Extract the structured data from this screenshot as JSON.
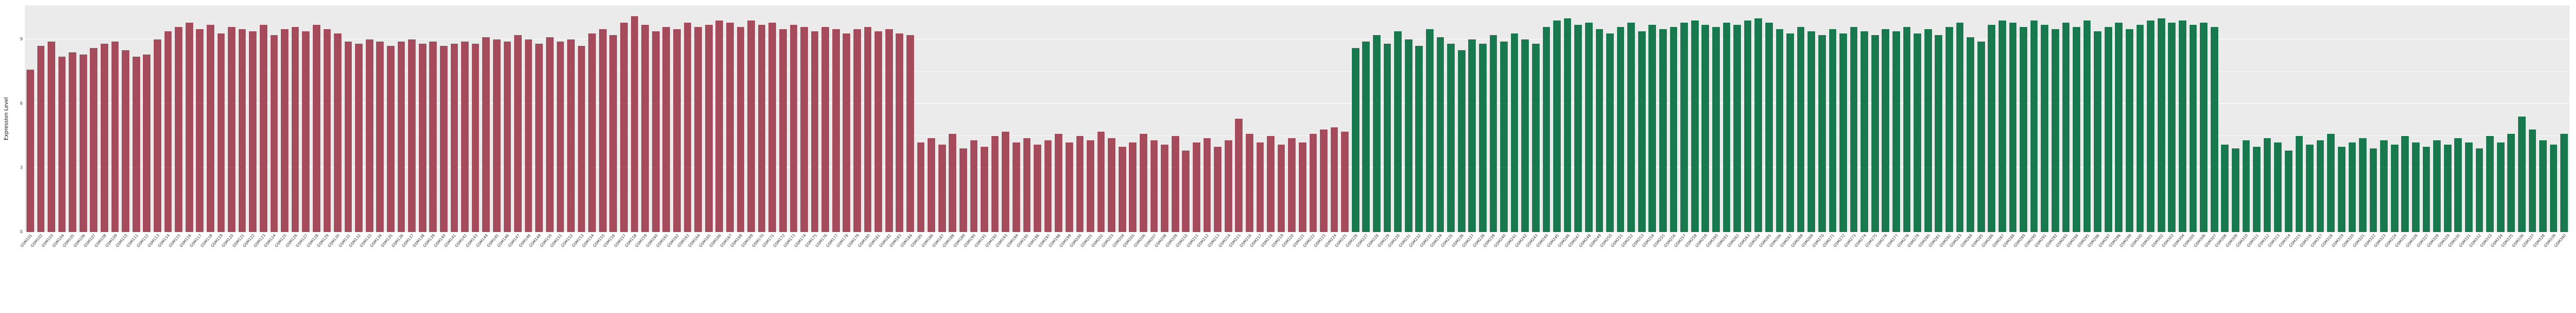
{
  "chart_data": {
    "type": "bar",
    "title": "",
    "xlabel": "",
    "ylabel": "Expression Level",
    "ylim": [
      0,
      10.6
    ],
    "yticks": [
      0,
      3,
      6,
      9
    ],
    "minor_yticks": [
      1.5,
      4.5,
      7.5
    ],
    "grid": "on",
    "legend": "none",
    "panel_background": "#ebebeb",
    "grid_color": "#ffffff",
    "groups": [
      {
        "name": "red-group",
        "color": "#a54b5b",
        "start": 0,
        "count": 125
      },
      {
        "name": "green-group",
        "color": "#18794e",
        "start": 125,
        "count": 115
      }
    ],
    "categories": [
      "GSM101",
      "GSM102",
      "GSM103",
      "GSM104",
      "GSM105",
      "GSM106",
      "GSM107",
      "GSM108",
      "GSM109",
      "GSM110",
      "GSM111",
      "GSM112",
      "GSM113",
      "GSM114",
      "GSM115",
      "GSM116",
      "GSM117",
      "GSM118",
      "GSM119",
      "GSM120",
      "GSM121",
      "GSM122",
      "GSM123",
      "GSM124",
      "GSM125",
      "GSM126",
      "GSM127",
      "GSM128",
      "GSM129",
      "GSM130",
      "GSM131",
      "GSM132",
      "GSM133",
      "GSM134",
      "GSM135",
      "GSM136",
      "GSM137",
      "GSM138",
      "GSM139",
      "GSM140",
      "GSM141",
      "GSM142",
      "GSM143",
      "GSM144",
      "GSM145",
      "GSM146",
      "GSM147",
      "GSM148",
      "GSM149",
      "GSM150",
      "GSM151",
      "GSM152",
      "GSM153",
      "GSM154",
      "GSM155",
      "GSM156",
      "GSM157",
      "GSM158",
      "GSM159",
      "GSM160",
      "GSM161",
      "GSM162",
      "GSM163",
      "GSM164",
      "GSM165",
      "GSM166",
      "GSM167",
      "GSM168",
      "GSM169",
      "GSM170",
      "GSM171",
      "GSM172",
      "GSM173",
      "GSM174",
      "GSM175",
      "GSM176",
      "GSM177",
      "GSM178",
      "GSM179",
      "GSM180",
      "GSM181",
      "GSM182",
      "GSM183",
      "GSM184",
      "GSM185",
      "GSM186",
      "GSM187",
      "GSM188",
      "GSM189",
      "GSM190",
      "GSM191",
      "GSM192",
      "GSM193",
      "GSM194",
      "GSM195",
      "GSM196",
      "GSM197",
      "GSM198",
      "GSM199",
      "GSM200",
      "GSM201",
      "GSM202",
      "GSM203",
      "GSM204",
      "GSM205",
      "GSM206",
      "GSM207",
      "GSM208",
      "GSM209",
      "GSM210",
      "GSM211",
      "GSM212",
      "GSM213",
      "GSM214",
      "GSM215",
      "GSM216",
      "GSM217",
      "GSM218",
      "GSM219",
      "GSM220",
      "GSM221",
      "GSM222",
      "GSM223",
      "GSM224",
      "GSM225",
      "GSM226",
      "GSM227",
      "GSM228",
      "GSM229",
      "GSM230",
      "GSM231",
      "GSM232",
      "GSM233",
      "GSM234",
      "GSM235",
      "GSM236",
      "GSM237",
      "GSM238",
      "GSM239",
      "GSM240",
      "GSM241",
      "GSM242",
      "GSM243",
      "GSM244",
      "GSM245",
      "GSM246",
      "GSM247",
      "GSM248",
      "GSM249",
      "GSM250",
      "GSM251",
      "GSM252",
      "GSM253",
      "GSM254",
      "GSM255",
      "GSM256",
      "GSM257",
      "GSM258",
      "GSM259",
      "GSM260",
      "GSM261",
      "GSM262",
      "GSM263",
      "GSM264",
      "GSM265",
      "GSM266",
      "GSM267",
      "GSM268",
      "GSM269",
      "GSM270",
      "GSM271",
      "GSM272",
      "GSM273",
      "GSM274",
      "GSM275",
      "GSM276",
      "GSM277",
      "GSM278",
      "GSM279",
      "GSM280",
      "GSM281",
      "GSM282",
      "GSM283",
      "GSM284",
      "GSM285",
      "GSM286",
      "GSM287",
      "GSM288",
      "GSM289",
      "GSM290",
      "GSM291",
      "GSM292",
      "GSM293",
      "GSM294",
      "GSM295",
      "GSM296",
      "GSM297",
      "GSM298",
      "GSM299",
      "GSM300",
      "GSM301",
      "GSM302",
      "GSM303",
      "GSM304",
      "GSM305",
      "GSM306",
      "GSM307",
      "GSM308",
      "GSM309",
      "GSM310",
      "GSM311",
      "GSM312",
      "GSM313",
      "GSM314",
      "GSM315",
      "GSM316",
      "GSM317",
      "GSM318",
      "GSM319",
      "GSM320",
      "GSM321",
      "GSM322",
      "GSM323",
      "GSM324",
      "GSM325",
      "GSM326",
      "GSM327",
      "GSM328",
      "GSM329",
      "GSM330",
      "GSM331",
      "GSM332",
      "GSM333",
      "GSM334",
      "GSM335",
      "GSM336",
      "GSM337",
      "GSM338",
      "GSM339",
      "GSM340"
    ],
    "values": [
      7.6,
      8.7,
      8.9,
      8.2,
      8.4,
      8.3,
      8.6,
      8.8,
      8.9,
      8.5,
      8.2,
      8.3,
      9.0,
      9.4,
      9.6,
      9.8,
      9.5,
      9.7,
      9.3,
      9.6,
      9.5,
      9.4,
      9.7,
      9.2,
      9.5,
      9.6,
      9.4,
      9.7,
      9.5,
      9.3,
      8.9,
      8.8,
      9.0,
      8.9,
      8.7,
      8.9,
      9.0,
      8.8,
      8.9,
      8.7,
      8.8,
      8.9,
      8.8,
      9.1,
      9.0,
      8.9,
      9.2,
      9.0,
      8.8,
      9.1,
      8.9,
      9.0,
      8.7,
      9.3,
      9.5,
      9.2,
      9.8,
      10.1,
      9.7,
      9.4,
      9.6,
      9.5,
      9.8,
      9.6,
      9.7,
      9.9,
      9.8,
      9.6,
      9.9,
      9.7,
      9.8,
      9.5,
      9.7,
      9.6,
      9.4,
      9.6,
      9.5,
      9.3,
      9.5,
      9.6,
      9.4,
      9.5,
      9.3,
      9.2,
      4.2,
      4.4,
      4.1,
      4.6,
      3.9,
      4.3,
      4.0,
      4.5,
      4.7,
      4.2,
      4.4,
      4.1,
      4.3,
      4.6,
      4.2,
      4.5,
      4.3,
      4.7,
      4.4,
      4.0,
      4.2,
      4.6,
      4.3,
      4.1,
      4.5,
      3.8,
      4.2,
      4.4,
      4.0,
      4.3,
      5.3,
      4.6,
      4.2,
      4.5,
      4.1,
      4.4,
      4.2,
      4.6,
      4.8,
      4.9,
      4.7,
      8.6,
      8.9,
      9.2,
      8.8,
      9.4,
      9.0,
      8.7,
      9.5,
      9.1,
      8.8,
      8.5,
      9.0,
      8.8,
      9.2,
      8.9,
      9.3,
      9.0,
      8.8,
      9.6,
      9.9,
      10.0,
      9.7,
      9.8,
      9.5,
      9.3,
      9.6,
      9.8,
      9.4,
      9.7,
      9.5,
      9.6,
      9.8,
      9.9,
      9.7,
      9.6,
      9.8,
      9.7,
      9.9,
      10.0,
      9.8,
      9.5,
      9.3,
      9.6,
      9.4,
      9.2,
      9.5,
      9.3,
      9.6,
      9.4,
      9.2,
      9.5,
      9.4,
      9.6,
      9.3,
      9.5,
      9.2,
      9.6,
      9.8,
      9.1,
      8.9,
      9.7,
      9.9,
      9.8,
      9.6,
      9.9,
      9.7,
      9.5,
      9.8,
      9.6,
      9.9,
      9.4,
      9.6,
      9.8,
      9.5,
      9.7,
      9.9,
      10.0,
      9.8,
      9.9,
      9.7,
      9.8,
      9.6,
      4.1,
      3.9,
      4.3,
      4.0,
      4.4,
      4.2,
      3.8,
      4.5,
      4.1,
      4.3,
      4.6,
      4.0,
      4.2,
      4.4,
      3.9,
      4.3,
      4.1,
      4.5,
      4.2,
      4.0,
      4.3,
      4.1,
      4.4,
      4.2,
      3.9,
      4.5,
      4.2,
      4.6,
      5.4,
      4.8,
      4.3,
      4.1,
      4.6
    ]
  }
}
